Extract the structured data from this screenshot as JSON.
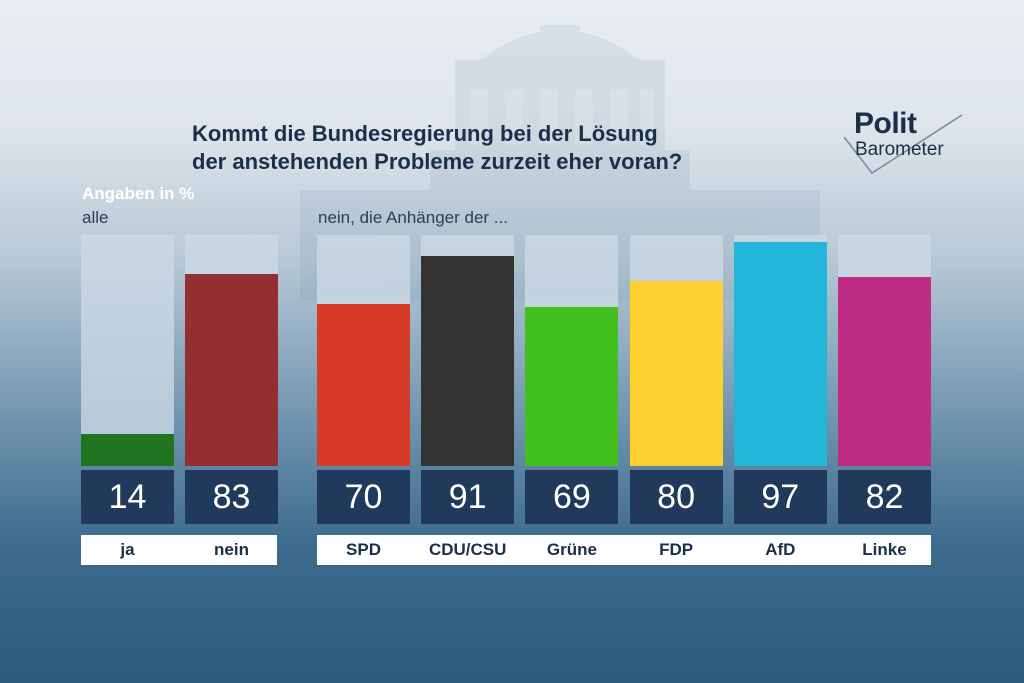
{
  "title": {
    "line1": "Kommt die Bundesregierung bei der Lösung",
    "line2": "der anstehenden Probleme zurzeit eher voran?"
  },
  "logo": {
    "line1": "Polit",
    "line2": "Barometer"
  },
  "units_label": "Angaben in %",
  "group_all_label": "alle",
  "group_parties_label": "nein, die Anhänger der ...",
  "colors": {
    "navy": "#213a5c",
    "ja": "#21741f",
    "nein": "#942f31",
    "SPD": "#d63b28",
    "CDU/CSU": "#333333",
    "Grüne": "#43c020",
    "FDP": "#fdcf2f",
    "AfD": "#22b6d8",
    "Linke": "#bf2c84"
  },
  "chart_data": [
    {
      "type": "bar",
      "group": "alle",
      "categories": [
        "ja",
        "nein"
      ],
      "values": [
        14,
        83
      ],
      "ylim": [
        0,
        100
      ]
    },
    {
      "type": "bar",
      "group": "nein, die Anhänger der ...",
      "categories": [
        "SPD",
        "CDU/CSU",
        "Grüne",
        "FDP",
        "AfD",
        "Linke"
      ],
      "values": [
        70,
        91,
        69,
        80,
        97,
        82
      ],
      "ylim": [
        0,
        100
      ]
    }
  ]
}
